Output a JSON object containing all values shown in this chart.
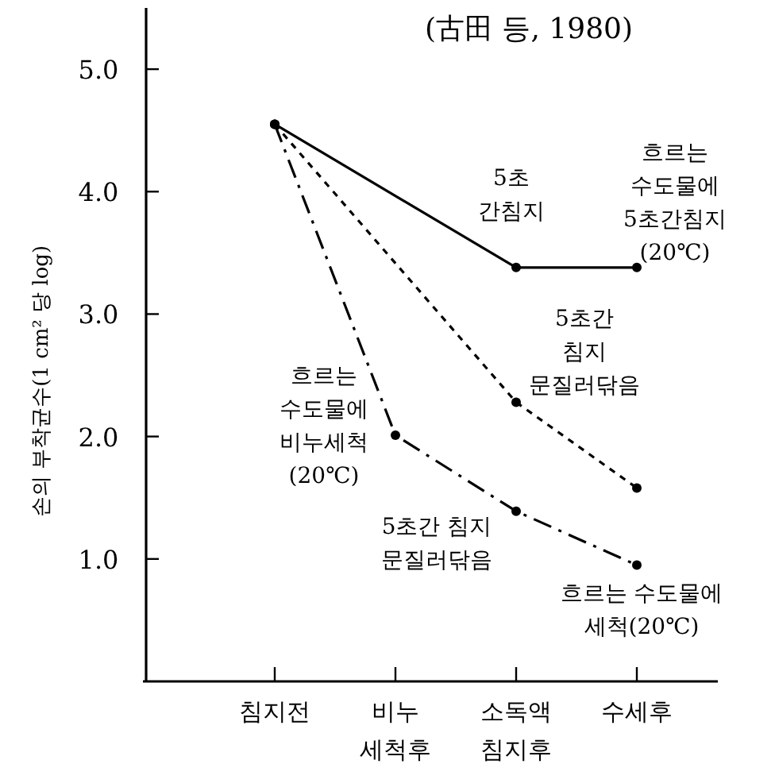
{
  "chart_data": {
    "type": "line",
    "title": "(古田 등, 1980)",
    "ylabel": "손의 부착균수(1 cm² 당 log)",
    "categories": [
      "침지전",
      "비누\n세척후",
      "소독액\n침지후",
      "수세후"
    ],
    "ylim": [
      0,
      5.5
    ],
    "yticks": [
      {
        "value": 1,
        "label": "1.0"
      },
      {
        "value": 2,
        "label": "2.0"
      },
      {
        "value": 3,
        "label": "3.0"
      },
      {
        "value": 4,
        "label": "4.0"
      },
      {
        "value": 5,
        "label": "5.0"
      }
    ],
    "grid": false,
    "marker": "circle",
    "series": [
      {
        "color": "#000000",
        "line_style": "solid",
        "values": [
          4.55,
          null,
          3.38,
          3.38
        ]
      },
      {
        "color": "#000000",
        "line_style": "dotted",
        "values": [
          4.55,
          null,
          2.28,
          1.58
        ]
      },
      {
        "color": "#000000",
        "line_style": "dashed",
        "values": [
          4.55,
          2.01,
          1.39,
          0.95
        ]
      }
    ],
    "annotations": [
      {
        "text": "5초\n간침지",
        "x": "소독액\n침지후",
        "y": 3.38
      },
      {
        "text": "흐르는\n수도물에\n5초간침지\n(20℃)",
        "x": "수세후",
        "y": 3.38
      },
      {
        "text": "5초간\n침지\n문질러닦음",
        "x": "소독액\n침지후",
        "y": 2.28
      },
      {
        "text": "흐르는\n수도물에\n비누세척\n(20℃)",
        "x": "비누\n세척후",
        "y": 2.01
      },
      {
        "text": "5초간 침지\n문질러닦음",
        "x": "소독액\n침지후",
        "y": 1.39
      },
      {
        "text": "흐르는 수도물에\n세척(20℃)",
        "x": "수세후",
        "y": 0.95
      }
    ]
  }
}
